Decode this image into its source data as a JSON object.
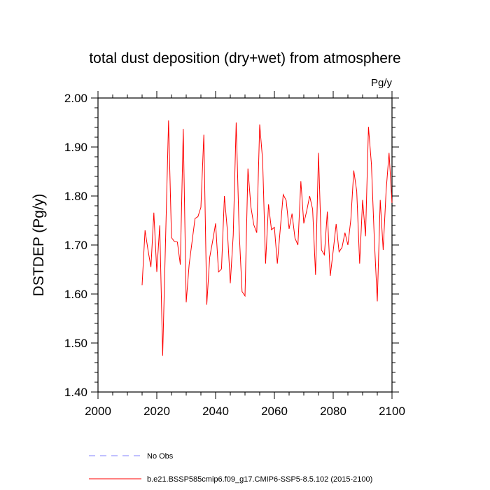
{
  "chart_data": {
    "type": "line",
    "title": "total dust deposition (dry+wet) from atmosphere",
    "units": "Pg/y",
    "ylabel": "DSTDEP  (Pg/y)",
    "xlabel": "",
    "xlim": [
      2000,
      2100
    ],
    "ylim": [
      1.4,
      2.0
    ],
    "xticks": [
      2000,
      2020,
      2040,
      2060,
      2080,
      2100
    ],
    "xtick_labels": [
      "2000",
      "2020",
      "2040",
      "2060",
      "2080",
      "2100"
    ],
    "yticks": [
      1.4,
      1.5,
      1.6,
      1.7,
      1.8,
      1.9,
      2.0
    ],
    "ytick_labels": [
      "1.40",
      "1.50",
      "1.60",
      "1.70",
      "1.80",
      "1.90",
      "2.00"
    ],
    "series": [
      {
        "name": "b.e21.BSSP585cmip6.f09_g17.CMIP6-SSP5-8.5.102 (2015-2100)",
        "color": "#ff0000",
        "style": "solid",
        "x": [
          2015,
          2016,
          2017,
          2018,
          2019,
          2020,
          2021,
          2022,
          2023,
          2024,
          2025,
          2026,
          2027,
          2028,
          2029,
          2030,
          2031,
          2032,
          2033,
          2034,
          2035,
          2036,
          2037,
          2038,
          2039,
          2040,
          2041,
          2042,
          2043,
          2044,
          2045,
          2046,
          2047,
          2048,
          2049,
          2050,
          2051,
          2052,
          2053,
          2054,
          2055,
          2056,
          2057,
          2058,
          2059,
          2060,
          2061,
          2062,
          2063,
          2064,
          2065,
          2066,
          2067,
          2068,
          2069,
          2070,
          2071,
          2072,
          2073,
          2074,
          2075,
          2076,
          2077,
          2078,
          2079,
          2080,
          2081,
          2082,
          2083,
          2084,
          2085,
          2086,
          2087,
          2088,
          2089,
          2090,
          2091,
          2092,
          2093,
          2094,
          2095,
          2096,
          2097,
          2098,
          2099,
          2100
        ],
        "values": [
          1.618,
          1.73,
          1.69,
          1.655,
          1.766,
          1.645,
          1.74,
          1.474,
          1.715,
          1.954,
          1.715,
          1.707,
          1.706,
          1.66,
          1.937,
          1.583,
          1.66,
          1.707,
          1.754,
          1.758,
          1.777,
          1.925,
          1.578,
          1.675,
          1.708,
          1.744,
          1.645,
          1.651,
          1.8,
          1.73,
          1.622,
          1.72,
          1.95,
          1.73,
          1.605,
          1.596,
          1.856,
          1.778,
          1.741,
          1.725,
          1.946,
          1.873,
          1.662,
          1.783,
          1.731,
          1.736,
          1.662,
          1.733,
          1.803,
          1.791,
          1.733,
          1.764,
          1.714,
          1.7,
          1.83,
          1.744,
          1.77,
          1.8,
          1.773,
          1.639,
          1.888,
          1.69,
          1.68,
          1.768,
          1.637,
          1.688,
          1.743,
          1.686,
          1.695,
          1.725,
          1.7,
          1.752,
          1.852,
          1.81,
          1.662,
          1.792,
          1.718,
          1.941,
          1.865,
          1.71,
          1.585,
          1.792,
          1.69,
          1.811,
          1.888,
          1.786
        ]
      }
    ],
    "legend": [
      {
        "label": "No Obs",
        "color": "#8080ff",
        "style": "dashed"
      },
      {
        "label": "b.e21.BSSP585cmip6.f09_g17.CMIP6-SSP5-8.5.102 (2015-2100)",
        "color": "#ff0000",
        "style": "solid"
      }
    ]
  }
}
